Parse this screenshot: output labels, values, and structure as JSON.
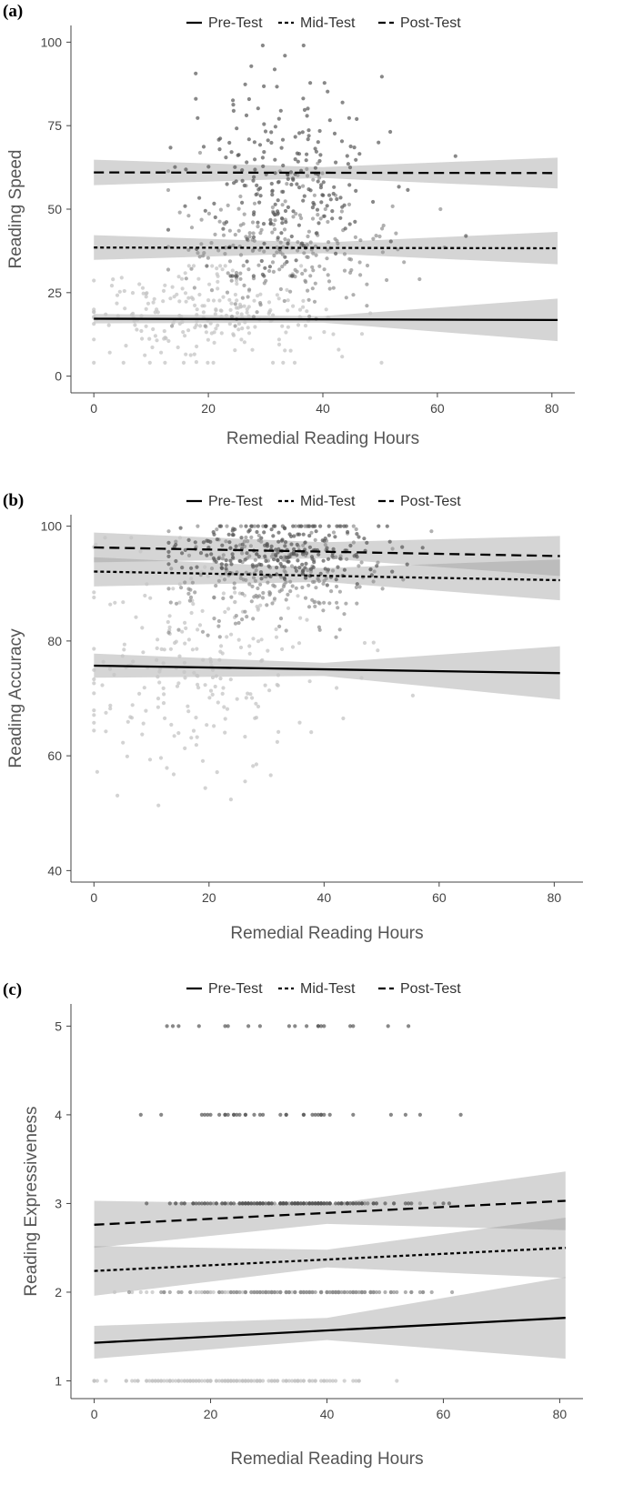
{
  "figure": {
    "legend_entries": [
      "Pre-Test",
      "Mid-Test",
      "Post-Test"
    ],
    "colors": {
      "line": "#000000",
      "ribbon": "#9a9a9a",
      "pre_points": "#c4c4c4",
      "mid_points": "#8e8e8e",
      "post_points": "#555555"
    }
  },
  "chart_data": [
    {
      "panel": "(a)",
      "type": "scatter",
      "xlabel": "Remedial Reading Hours",
      "ylabel": "Reading Speed",
      "xlim": [
        -4,
        84
      ],
      "ylim": [
        -5,
        105
      ],
      "xticks": [
        0,
        20,
        40,
        60,
        80
      ],
      "yticks": [
        0,
        25,
        50,
        75,
        100
      ],
      "legend": "top",
      "series": [
        {
          "name": "Pre-Test",
          "line_style": "solid",
          "fit": [
            [
              0,
              17.2
            ],
            [
              81,
              16.8
            ]
          ],
          "ci": [
            [
              0,
              15.8,
              18.6
            ],
            [
              40,
              16.0,
              18.0
            ],
            [
              81,
              10.5,
              23.2
            ]
          ],
          "points": {
            "x_range": [
              0,
              80
            ],
            "x_center": 18,
            "x_spread": 11,
            "y_center": 17,
            "y_spread": 7,
            "y_range": [
              4,
              33
            ],
            "count": 230
          }
        },
        {
          "name": "Mid-Test",
          "line_style": "dotted",
          "fit": [
            [
              0,
              38.5
            ],
            [
              81,
              38.3
            ]
          ],
          "ci": [
            [
              0,
              34.8,
              42.2
            ],
            [
              40,
              36.8,
              40.0
            ],
            [
              81,
              33.5,
              43.2
            ]
          ],
          "points": {
            "x_range": [
              13,
              80
            ],
            "x_center": 33,
            "x_spread": 9,
            "y_center": 39,
            "y_spread": 10,
            "y_range": [
              15,
              70
            ],
            "count": 230
          }
        },
        {
          "name": "Post-Test",
          "line_style": "dashed",
          "fit": [
            [
              0,
              61.0
            ],
            [
              81,
              60.8
            ]
          ],
          "ci": [
            [
              0,
              57.2,
              64.8
            ],
            [
              40,
              59.3,
              62.6
            ],
            [
              81,
              56.2,
              65.4
            ]
          ],
          "points": {
            "x_range": [
              13,
              81
            ],
            "x_center": 33,
            "x_spread": 9,
            "y_center": 60,
            "y_spread": 16,
            "y_range": [
              30,
              99
            ],
            "count": 230
          }
        }
      ]
    },
    {
      "panel": "(b)",
      "type": "scatter",
      "xlabel": "Remedial Reading Hours",
      "ylabel": "Reading Accuracy",
      "xlim": [
        -4,
        85
      ],
      "ylim": [
        38,
        102
      ],
      "xticks": [
        0,
        20,
        40,
        60,
        80
      ],
      "yticks": [
        40,
        60,
        80,
        100
      ],
      "legend": "top",
      "series": [
        {
          "name": "Pre-Test",
          "line_style": "solid",
          "fit": [
            [
              0,
              75.7
            ],
            [
              81,
              74.4
            ]
          ],
          "ci": [
            [
              0,
              73.6,
              77.8
            ],
            [
              40,
              73.9,
              76.2
            ],
            [
              81,
              69.8,
              79.1
            ]
          ],
          "points": {
            "x_range": [
              0,
              80
            ],
            "x_center": 18,
            "x_spread": 11,
            "y_center": 75,
            "y_spread": 10,
            "y_range": [
              45,
              98
            ],
            "count": 230
          }
        },
        {
          "name": "Mid-Test",
          "line_style": "dotted",
          "fit": [
            [
              0,
              92.1
            ],
            [
              81,
              90.6
            ]
          ],
          "ci": [
            [
              0,
              89.5,
              94.6
            ],
            [
              40,
              90.3,
              92.7
            ],
            [
              81,
              87.1,
              94.2
            ]
          ],
          "points": {
            "x_range": [
              13,
              80
            ],
            "x_center": 32,
            "x_spread": 9,
            "y_center": 92,
            "y_spread": 5,
            "y_range": [
              72,
              100
            ],
            "count": 230
          }
        },
        {
          "name": "Post-Test",
          "line_style": "dashed",
          "fit": [
            [
              0,
              96.3
            ],
            [
              81,
              94.8
            ]
          ],
          "ci": [
            [
              0,
              93.7,
              98.9
            ],
            [
              40,
              94.4,
              97.2
            ],
            [
              81,
              91.3,
              98.3
            ]
          ],
          "points": {
            "x_range": [
              13,
              80
            ],
            "x_center": 32,
            "x_spread": 9,
            "y_center": 96,
            "y_spread": 3,
            "y_range": [
              84,
              100
            ],
            "count": 230
          }
        }
      ]
    },
    {
      "panel": "(c)",
      "type": "scatter",
      "xlabel": "Remedial Reading Hours",
      "ylabel": "Reading Expressiveness",
      "xlim": [
        -4,
        84
      ],
      "ylim": [
        0.8,
        5.25
      ],
      "xticks": [
        0,
        20,
        40,
        60,
        80
      ],
      "yticks": [
        1,
        2,
        3,
        4,
        5
      ],
      "legend": "top",
      "series": [
        {
          "name": "Pre-Test",
          "line_style": "solid",
          "fit": [
            [
              0,
              1.43
            ],
            [
              81,
              1.71
            ]
          ],
          "ci": [
            [
              0,
              1.25,
              1.62
            ],
            [
              40,
              1.46,
              1.71
            ],
            [
              81,
              1.25,
              2.17
            ]
          ],
          "points": {
            "x_range": [
              0,
              52
            ],
            "x_center": 22,
            "x_spread": 12,
            "levels": [
              1,
              2
            ],
            "level_weights": [
              0.8,
              0.2
            ],
            "count": 180
          }
        },
        {
          "name": "Mid-Test",
          "line_style": "dotted",
          "fit": [
            [
              0,
              2.24
            ],
            [
              81,
              2.5
            ]
          ],
          "ci": [
            [
              0,
              1.96,
              2.52
            ],
            [
              40,
              2.28,
              2.48
            ],
            [
              81,
              2.16,
              2.84
            ]
          ],
          "points": {
            "x_range": [
              0,
              80
            ],
            "x_center": 33,
            "x_spread": 11,
            "levels": [
              2,
              3
            ],
            "level_weights": [
              0.7,
              0.3
            ],
            "count": 180
          }
        },
        {
          "name": "Post-Test",
          "line_style": "dashed",
          "fit": [
            [
              0,
              2.76
            ],
            [
              81,
              3.03
            ]
          ],
          "ci": [
            [
              0,
              2.5,
              3.03
            ],
            [
              40,
              2.77,
              2.99
            ],
            [
              81,
              2.7,
              3.36
            ]
          ],
          "points": {
            "x_range": [
              8,
              80
            ],
            "x_center": 34,
            "x_spread": 11,
            "levels": [
              3,
              4,
              5
            ],
            "level_weights": [
              0.7,
              0.2,
              0.1
            ],
            "count": 180
          }
        }
      ]
    }
  ]
}
